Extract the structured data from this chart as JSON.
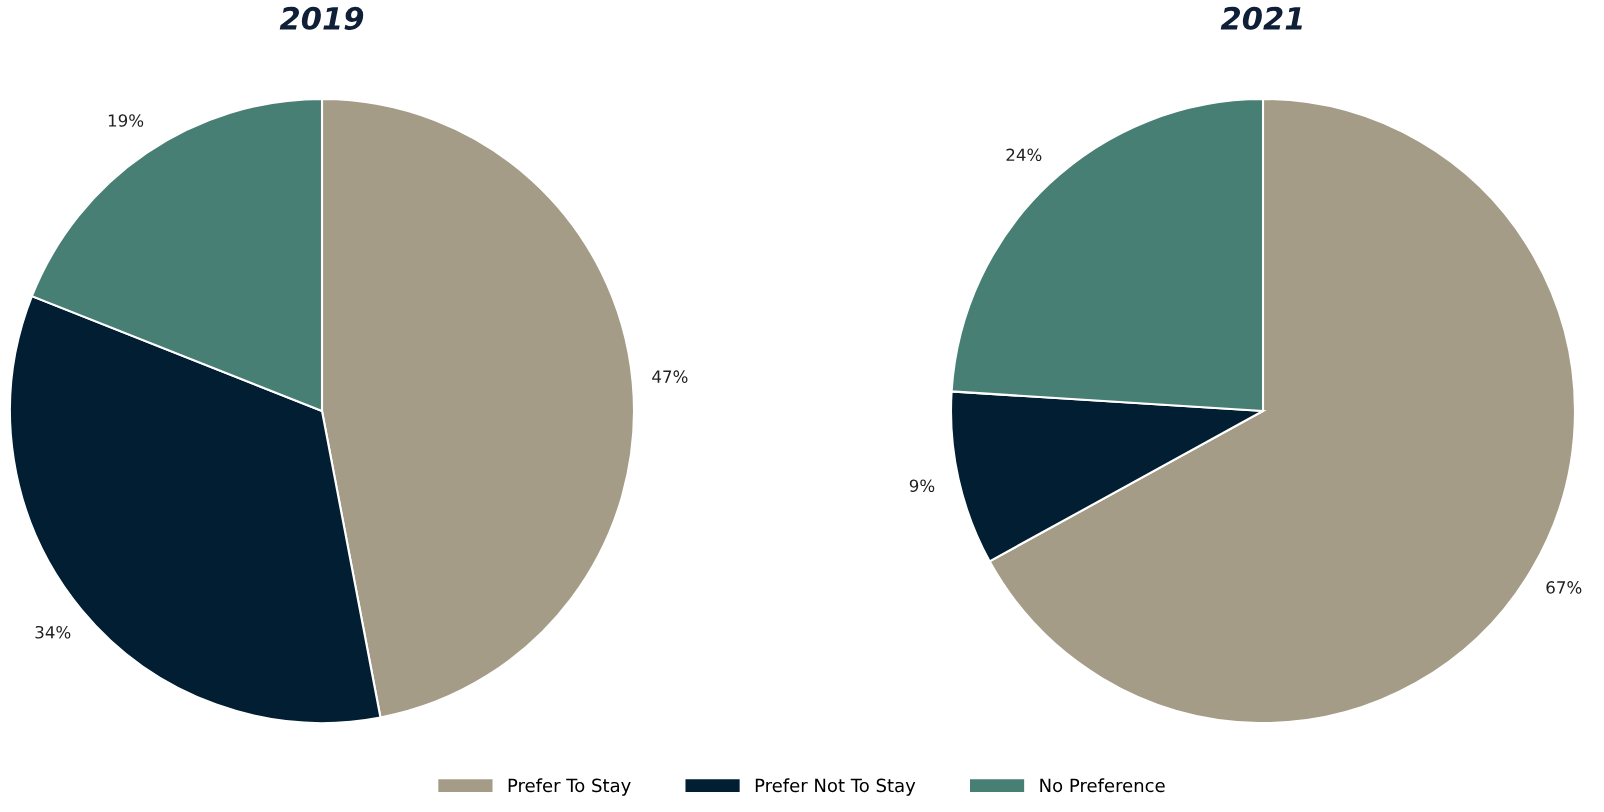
{
  "chart_data": {
    "type": "pie",
    "categories": [
      "Prefer To Stay",
      "Prefer Not To Stay",
      "No Preference"
    ],
    "colors": [
      "#a59c87",
      "#011e33",
      "#477f74"
    ],
    "legend": "bottom",
    "series": [
      {
        "name": "2019",
        "values": [
          47,
          34,
          19
        ],
        "value_labels": [
          "47%",
          "34%",
          "19%"
        ]
      },
      {
        "name": "2021",
        "values": [
          67,
          9,
          24
        ],
        "value_labels": [
          "67%",
          "9%",
          "24%"
        ]
      }
    ]
  }
}
